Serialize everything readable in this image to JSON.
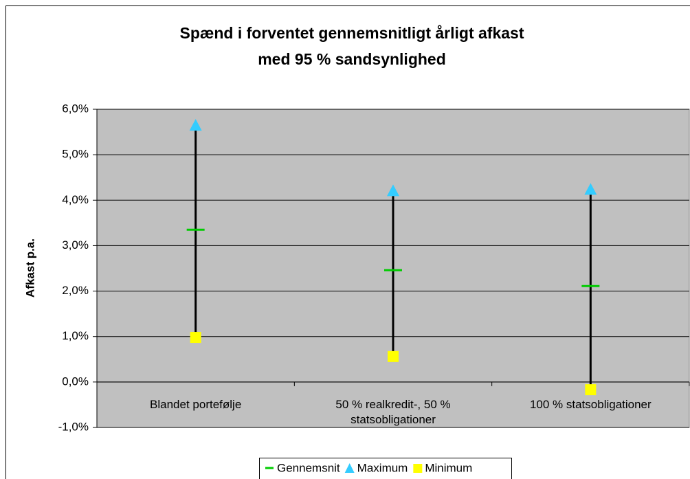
{
  "chart_data": {
    "type": "hilo",
    "title": [
      "Spænd i forventet gennemsnitligt årligt afkast",
      "med 95 % sandsynlighed"
    ],
    "y_label": "Afkast p.a.",
    "categories": [
      "Blandet portefølje",
      "50 % realkredit-, 50 % statsobligationer",
      "100 % statsobligationer"
    ],
    "series": [
      {
        "name": "Gennemsnit",
        "color": "#00cc00",
        "marker": "dash",
        "values": [
          3.35,
          2.46,
          2.11
        ]
      },
      {
        "name": "Maximum",
        "color": "#33ccff",
        "marker": "triangle",
        "values": [
          5.65,
          4.21,
          4.24
        ]
      },
      {
        "name": "Minimum",
        "color": "#ffff00",
        "marker": "square",
        "values": [
          0.98,
          0.56,
          -0.17
        ]
      }
    ],
    "ylim": [
      -1,
      6
    ],
    "yticks": [
      {
        "value": -1,
        "label": "-1,0%"
      },
      {
        "value": 0,
        "label": "0,0%"
      },
      {
        "value": 1,
        "label": "1,0%"
      },
      {
        "value": 2,
        "label": "2,0%"
      },
      {
        "value": 3,
        "label": "3,0%"
      },
      {
        "value": 4,
        "label": "4,0%"
      },
      {
        "value": 5,
        "label": "5,0%"
      },
      {
        "value": 6,
        "label": "6,0%"
      }
    ],
    "grid": true,
    "plot_background": "#c0c0c0",
    "legend": "bottom"
  }
}
